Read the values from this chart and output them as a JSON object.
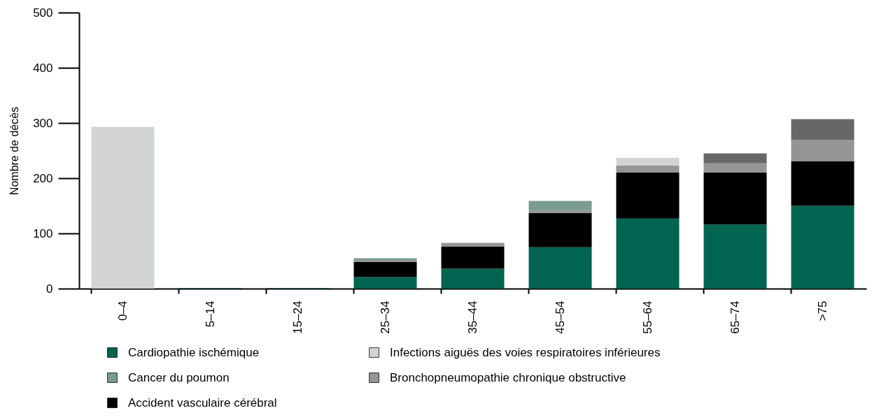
{
  "chart_data": {
    "type": "bar",
    "stacked": true,
    "ylabel": "Nombre de décès",
    "categories": [
      "0–4",
      "5–14",
      "15–24",
      "25–34",
      "35–44",
      "45–54",
      "55–64",
      "65–74",
      ">75"
    ],
    "ylim": [
      0,
      500
    ],
    "yticks": [
      0,
      100,
      200,
      300,
      400,
      500
    ],
    "grid": false,
    "legend": "bottom",
    "series": [
      {
        "name": "Cardiopathie ischémique",
        "color": "#006450",
        "values": [
          0,
          1,
          1,
          21,
          36,
          75,
          127,
          116,
          150
        ]
      },
      {
        "name": "Accident vasculaire cérébral",
        "color": "#000000",
        "values": [
          0,
          0,
          0,
          27,
          40,
          62,
          83,
          94,
          81
        ]
      },
      {
        "name": "Bronchopneumopathie chronique obstructive",
        "color": "#959598",
        "values": [
          0,
          0,
          0,
          4,
          7,
          5,
          13,
          17,
          38
        ]
      },
      {
        "name": "Cancer du poumon",
        "color": "#7a9c90",
        "values": [
          0,
          0,
          0,
          3,
          0,
          17,
          0,
          0,
          0
        ]
      },
      {
        "name": "Infections aiguës des voies respiratoires inférieures",
        "color": "#d2d3d5",
        "values": [
          293,
          0,
          0,
          0,
          0,
          0,
          14,
          0,
          0
        ]
      },
      {
        "color": "#666769",
        "values": [
          0,
          0,
          0,
          0,
          0,
          0,
          0,
          18,
          38
        ]
      }
    ]
  }
}
